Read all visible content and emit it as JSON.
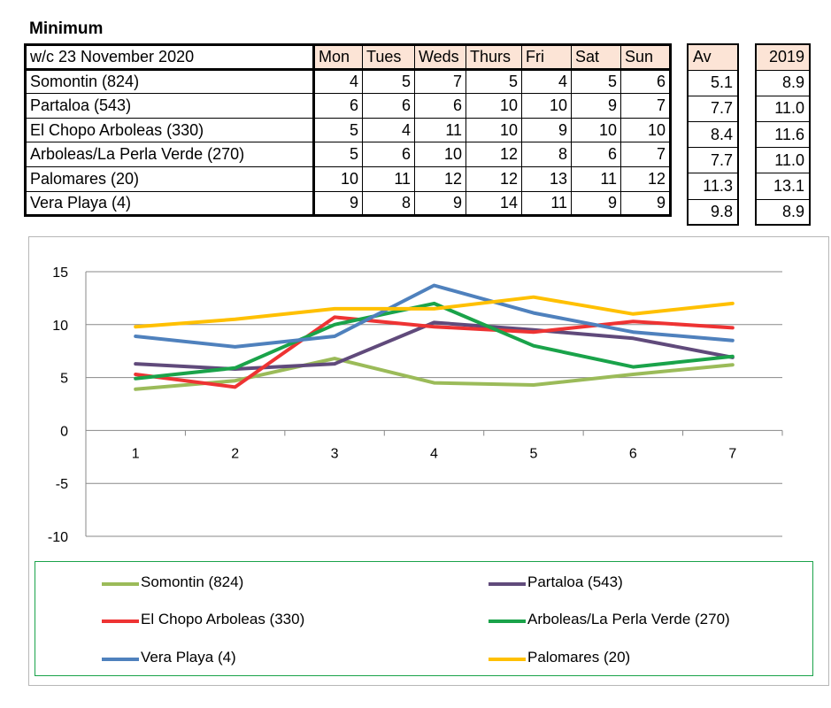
{
  "title": "Minimum",
  "table": {
    "week_label": "w/c 23 November 2020",
    "days": [
      "Mon",
      "Tues",
      "Weds",
      "Thurs",
      "Fri",
      "Sat",
      "Sun"
    ],
    "av_header": "Av",
    "prev_header": "2019",
    "rows": [
      {
        "name": "Somontin (824)",
        "values": [
          "4",
          "5",
          "7",
          "5",
          "4",
          "5",
          "6"
        ],
        "av": "5.1",
        "prev": "8.9"
      },
      {
        "name": "Partaloa (543)",
        "values": [
          "6",
          "6",
          "6",
          "10",
          "10",
          "9",
          "7"
        ],
        "av": "7.7",
        "prev": "11.0"
      },
      {
        "name": "El Chopo Arboleas (330)",
        "values": [
          "5",
          "4",
          "11",
          "10",
          "9",
          "10",
          "10"
        ],
        "av": "8.4",
        "prev": "11.6"
      },
      {
        "name": "Arboleas/La Perla Verde (270)",
        "values": [
          "5",
          "6",
          "10",
          "12",
          "8",
          "6",
          "7"
        ],
        "av": "7.7",
        "prev": "11.0"
      },
      {
        "name": "Palomares (20)",
        "values": [
          "10",
          "11",
          "12",
          "12",
          "13",
          "11",
          "12"
        ],
        "av": "11.3",
        "prev": "13.1"
      },
      {
        "name": "Vera Playa (4)",
        "values": [
          "9",
          "8",
          "9",
          "14",
          "11",
          "9",
          "9"
        ],
        "av": "9.8",
        "prev": "8.9"
      }
    ]
  },
  "chart_data": {
    "type": "line",
    "x": [
      1,
      2,
      3,
      4,
      5,
      6,
      7
    ],
    "x_tick_labels": [
      "1",
      "2",
      "3",
      "4",
      "5",
      "6",
      "7"
    ],
    "y_tick_labels": [
      "15",
      "10",
      "5",
      "0",
      "-5",
      "-10"
    ],
    "ylim": [
      -10,
      15
    ],
    "y_ticks": [
      15,
      10,
      5,
      0,
      -5,
      -10
    ],
    "grid": true,
    "legend_position": "bottom",
    "series": [
      {
        "name": "Somontin (824)",
        "color": "#9bbb59",
        "values": [
          3.9,
          4.7,
          6.8,
          4.5,
          4.3,
          5.3,
          6.2
        ]
      },
      {
        "name": "Partaloa (543)",
        "color": "#604a7b",
        "values": [
          6.3,
          5.8,
          6.3,
          10.2,
          9.5,
          8.7,
          6.9
        ]
      },
      {
        "name": "El Chopo Arboleas (330)",
        "color": "#ee3333",
        "values": [
          5.3,
          4.1,
          10.7,
          9.8,
          9.3,
          10.3,
          9.7
        ]
      },
      {
        "name": "Arboleas/La Perla Verde (270)",
        "color": "#1aa34a",
        "values": [
          4.9,
          5.9,
          10.0,
          12.0,
          8.0,
          6.0,
          7.0
        ]
      },
      {
        "name": "Vera Playa (4)",
        "color": "#4f81bd",
        "values": [
          8.9,
          7.9,
          8.9,
          13.7,
          11.1,
          9.3,
          8.5
        ]
      },
      {
        "name": "Palomares (20)",
        "color": "#ffc000",
        "values": [
          9.8,
          10.5,
          11.5,
          11.5,
          12.6,
          11.0,
          12.0
        ]
      }
    ]
  }
}
